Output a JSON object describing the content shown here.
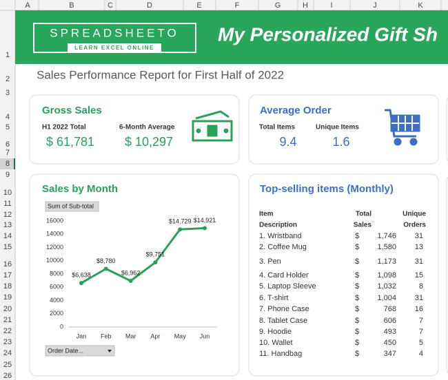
{
  "columns": [
    "A",
    "B",
    "C",
    "D",
    "E",
    "F",
    "G",
    "H",
    "I",
    "J",
    "K"
  ],
  "rows": [
    1,
    2,
    3,
    4,
    5,
    6,
    7,
    8,
    9,
    10,
    11,
    12,
    13,
    14,
    15,
    16,
    17,
    18,
    19,
    20,
    21,
    22,
    23,
    24,
    25,
    26
  ],
  "header": {
    "logo": "SPREADSHEETO",
    "logo_tagline": "LEARN EXCEL ONLINE",
    "title": "My Personalized Gift Sh"
  },
  "subtitle": "Sales Performance Report for First Half of 2022",
  "gross_sales": {
    "title": "Gross Sales",
    "total_label": "H1 2022 Total",
    "total": "$ 61,781",
    "average_label": "6-Month Average",
    "average": "$ 10,297"
  },
  "average_order": {
    "title": "Average Order",
    "total_items_label": "Total Items",
    "total_items": 9.4,
    "unique_items_label": "Unique Items",
    "unique_items": 1.6
  },
  "sales_by_month": {
    "type": "line",
    "title": "Sales by Month",
    "button": "Sum of Sub-total",
    "filter": "Order Date...",
    "categories": [
      "Jan",
      "Feb",
      "Mar",
      "Apr",
      "May",
      "Jun"
    ],
    "values": [
      6638,
      8780,
      6962,
      9751,
      14729,
      14921
    ],
    "value_labels": [
      "$6,638",
      "$8,780",
      "$6,962",
      "$9,751",
      "$14,729",
      "$14,921"
    ],
    "ylim": [
      0,
      16000
    ],
    "yticks": [
      0,
      2000,
      4000,
      6000,
      8000,
      10000,
      12000,
      14000,
      16000
    ],
    "color": "#2aa05a"
  },
  "top_items": {
    "title": "Top-selling items (Monthly)",
    "header": [
      [
        "Item",
        "Description"
      ],
      [
        "Total",
        "Sales"
      ],
      [
        "Unique",
        "Orders"
      ]
    ],
    "currency": "$",
    "rows": [
      [
        "1. Wristband",
        "1,746",
        31
      ],
      [
        "2. Coffee Mug",
        "1,580",
        13
      ],
      [
        "3. Pen",
        "1,173",
        31
      ],
      [
        "4. Card Holder",
        "1,098",
        15
      ],
      [
        "5. Laptop Sleeve",
        "1,032",
        8
      ],
      [
        "6. T-shirt",
        "1,004",
        31
      ],
      [
        "7. Phone Case",
        "768",
        16
      ],
      [
        "8. Tablet Case",
        "606",
        7
      ],
      [
        "9. Hoodie",
        "493",
        7
      ],
      [
        "10. Wallet",
        "450",
        5
      ],
      [
        "11. Handbag",
        "347",
        4
      ]
    ]
  }
}
